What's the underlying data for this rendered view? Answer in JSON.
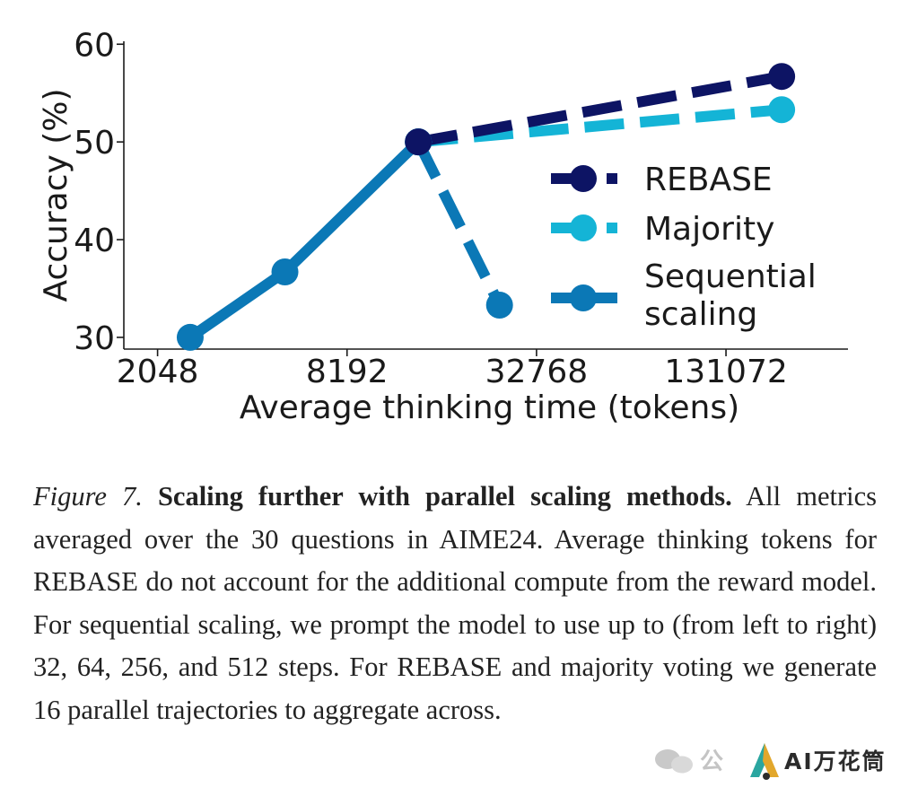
{
  "chart_data": {
    "type": "line",
    "x_scale": "log2",
    "xlabel": "Average thinking time (tokens)",
    "ylabel": "Accuracy (%)",
    "xticks": [
      2048,
      8192,
      32768,
      131072
    ],
    "xtick_labels": [
      "2048",
      "8192",
      "32768",
      "131072"
    ],
    "yticks": [
      30,
      40,
      50,
      60
    ],
    "ytick_labels": [
      "30",
      "40",
      "50",
      "60"
    ],
    "xlim": [
      1600,
      320000
    ],
    "ylim": [
      28.8,
      60.3
    ],
    "grid": false,
    "legend_position": "right",
    "series": [
      {
        "name": "REBASE",
        "style": "dashed",
        "color": "#0d1464",
        "x": [
          13800,
          197000
        ],
        "y": [
          50.0,
          56.7
        ]
      },
      {
        "name": "Majority",
        "style": "dashed",
        "color": "#14b4d6",
        "x": [
          13800,
          197000
        ],
        "y": [
          50.0,
          53.3
        ]
      },
      {
        "name": "Sequential scaling",
        "style": "solid",
        "color": "#0b78b6",
        "x": [
          2600,
          5200,
          13800
        ],
        "y": [
          30.0,
          36.7,
          50.0
        ]
      },
      {
        "name": "",
        "style": "dashed",
        "color": "#0b78b6",
        "x": [
          13800,
          25000
        ],
        "y": [
          50.0,
          33.3
        ]
      }
    ],
    "legend_entries": [
      {
        "label": "REBASE",
        "color": "#0d1464",
        "style": "dashed"
      },
      {
        "label": "Majority",
        "color": "#14b4d6",
        "style": "dashed"
      },
      {
        "label_lines": [
          "Sequential",
          "scaling"
        ],
        "color": "#0b78b6",
        "style": "solid"
      }
    ]
  },
  "caption": {
    "figure_number": "Figure 7.",
    "title": "Scaling further with parallel scaling methods.",
    "body": "All metrics averaged over the 30 questions in AIME24. Average thinking tokens for REBASE do not account for the additional compute from the reward model. For sequential scaling, we prompt the model to use up to (from left to right) 32, 64, 256, and 512 steps. For REBASE and majority voting we generate 16 parallel trajectories to aggregate across."
  },
  "watermark": {
    "prefix": "公",
    "brand": "AI万花筒"
  }
}
